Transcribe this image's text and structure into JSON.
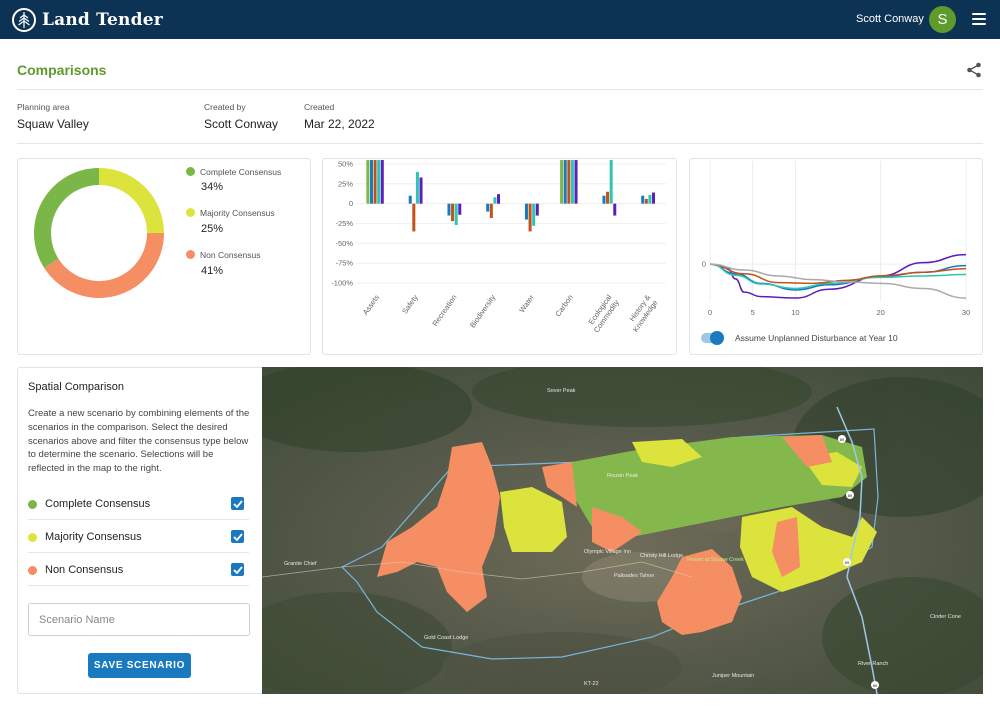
{
  "app": {
    "name": "Land Tender"
  },
  "user": {
    "name": "Scott Conway",
    "initial": "S"
  },
  "page": {
    "title": "Comparisons"
  },
  "meta": [
    {
      "label": "Planning area",
      "value": "Squaw Valley"
    },
    {
      "label": "Created by",
      "value": "Scott Conway"
    },
    {
      "label": "Created",
      "value": "Mar 22, 2022"
    }
  ],
  "colors": {
    "header": "#0d3354",
    "accent": "#5f9a2c",
    "primary": "#1a7ac0",
    "complete": "#7ab648",
    "majority": "#dde33d",
    "non": "#f58e63"
  },
  "icons": {
    "logo": "tree-icon",
    "share": "share-icon",
    "menu": "hamburger-menu-icon",
    "checkbox": "checkmark-icon"
  },
  "consensus_legend": [
    {
      "label": "Complete Consensus",
      "pct": "34%"
    },
    {
      "label": "Majority Consensus",
      "pct": "25%"
    },
    {
      "label": "Non Consensus",
      "pct": "41%"
    }
  ],
  "chart_data": [
    {
      "type": "pie",
      "donut": true,
      "labels": [
        "Complete Consensus",
        "Majority Consensus",
        "Non Consensus"
      ],
      "values": [
        34,
        25,
        41
      ],
      "colors": [
        "#7ab648",
        "#dde33d",
        "#f58e63"
      ]
    },
    {
      "type": "bar",
      "categories": [
        "Assets",
        "Safety",
        "Recreation",
        "Biodiversity",
        "Water",
        "Carbon",
        "Ecological Commodity",
        "History & Knowledge"
      ],
      "y_tick_labels": [
        "50%",
        "25%",
        "0",
        "-25%",
        "-50%",
        "-75%",
        "-100%"
      ],
      "ylim": [
        -100,
        50
      ],
      "series": [
        {
          "color": "#7ab648",
          "values": [
            55,
            0,
            0,
            0,
            0,
            55,
            0,
            0
          ]
        },
        {
          "color": "#1a7ac0",
          "values": [
            55,
            10,
            -15,
            -10,
            -20,
            55,
            10,
            10
          ]
        },
        {
          "color": "#c2521b",
          "values": [
            55,
            -35,
            -22,
            -18,
            -35,
            55,
            15,
            6
          ]
        },
        {
          "color": "#2ec5b5",
          "values": [
            55,
            40,
            -27,
            8,
            -28,
            55,
            55,
            11
          ]
        },
        {
          "color": "#5b1fb8",
          "values": [
            55,
            33,
            -14,
            12,
            -15,
            55,
            -15,
            14
          ]
        }
      ]
    },
    {
      "type": "line",
      "x_ticks": [
        0,
        5,
        10,
        20,
        30
      ],
      "y_ticks": [
        0
      ],
      "xlim": [
        0,
        30
      ],
      "ylim": [
        -5,
        14
      ],
      "series": [
        {
          "color": "#5b1fb8",
          "points": [
            [
              0,
              0
            ],
            [
              2,
              -0.5
            ],
            [
              3,
              -2
            ],
            [
              4,
              -3.8
            ],
            [
              6,
              -4.4
            ],
            [
              10,
              -4.6
            ],
            [
              14,
              -3.4
            ],
            [
              20,
              -1.6
            ],
            [
              25,
              0.2
            ],
            [
              30,
              1.3
            ]
          ]
        },
        {
          "color": "#1a7ac0",
          "points": [
            [
              0,
              0
            ],
            [
              3,
              -1.3
            ],
            [
              6,
              -2.6
            ],
            [
              10,
              -3.5
            ],
            [
              14,
              -2.8
            ],
            [
              20,
              -1.7
            ],
            [
              25,
              -1.1
            ],
            [
              30,
              -0.2
            ]
          ]
        },
        {
          "color": "#2ec5b5",
          "points": [
            [
              0,
              0
            ],
            [
              3,
              -1.5
            ],
            [
              6,
              -2.7
            ],
            [
              10,
              -3.3
            ],
            [
              14,
              -2.6
            ],
            [
              20,
              -1.8
            ],
            [
              25,
              -1.6
            ],
            [
              30,
              -1.4
            ]
          ]
        },
        {
          "color": "#c2521b",
          "points": [
            [
              0,
              0
            ],
            [
              4,
              -1.3
            ],
            [
              8,
              -2.5
            ],
            [
              12,
              -2.6
            ],
            [
              16,
              -2.2
            ],
            [
              20,
              -1.6
            ],
            [
              25,
              -1.1
            ],
            [
              30,
              -0.6
            ]
          ]
        },
        {
          "color": "#aaaaaa",
          "points": [
            [
              0,
              0
            ],
            [
              4,
              -0.8
            ],
            [
              8,
              -1.6
            ],
            [
              12,
              -2.1
            ],
            [
              16,
              -2.4
            ],
            [
              20,
              -2.6
            ],
            [
              25,
              -3.3
            ],
            [
              30,
              -4.6
            ]
          ]
        }
      ]
    }
  ],
  "toggle": {
    "label": "Assume Unplanned Disturbance at Year 10",
    "on": true
  },
  "spatial": {
    "title": "Spatial Comparison",
    "description": "Create a new scenario by combining elements of the scenarios in the comparison. Select the desired scenarios above and filter the consensus type below to determine the scenario. Selections will be reflected in the map to the right.",
    "filters": [
      {
        "label": "Complete Consensus",
        "checked": true
      },
      {
        "label": "Majority Consensus",
        "checked": true
      },
      {
        "label": "Non Consensus",
        "checked": true
      }
    ],
    "scenario_placeholder": "Scenario Name",
    "save_label": "SAVE SCENARIO"
  },
  "map": {
    "labels": [
      "Sover Peak",
      "Rousin Peak",
      "Olympic Village Inn",
      "Resort at Squaw Creek",
      "Palisades Tahoe",
      "Granite Chief",
      "Gold Coast Lodge",
      "Cinder Cone",
      "River Ranch",
      "Juniper Mountain",
      "Christy Hill Lodge"
    ],
    "road_badges": [
      "89",
      "89",
      "89",
      "89"
    ],
    "highway_label": "KT-22"
  }
}
